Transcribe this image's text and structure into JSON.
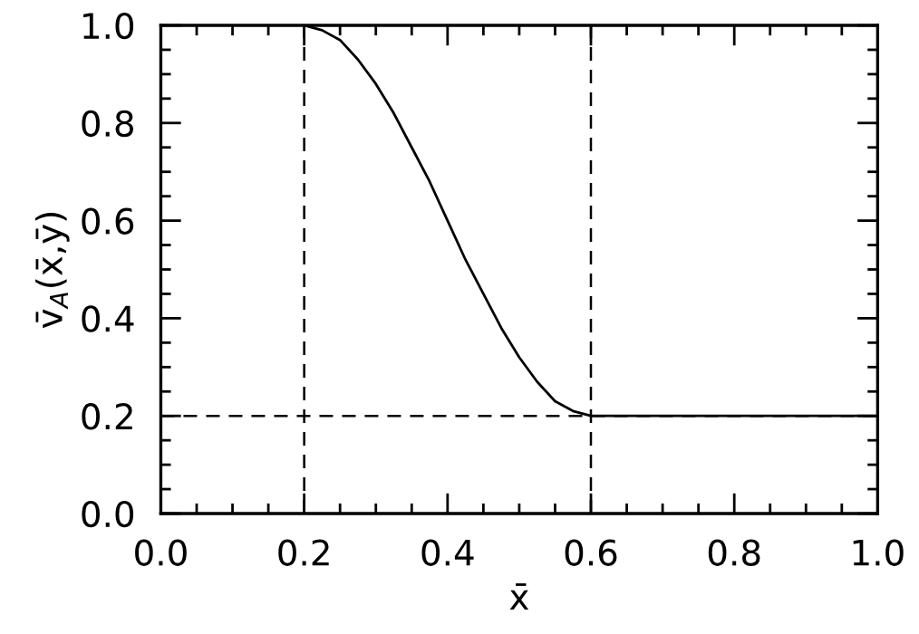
{
  "chart_data": {
    "type": "line",
    "xlabel": "x̄",
    "ylabel": "v̄$_{A}$(x̄,ȳ)",
    "x": [
      0.2,
      0.225,
      0.25,
      0.275,
      0.3,
      0.325,
      0.35,
      0.375,
      0.4,
      0.425,
      0.45,
      0.475,
      0.5,
      0.525,
      0.55,
      0.575,
      0.6,
      1.0
    ],
    "series": [
      {
        "color": "#000000",
        "values": [
          1.0,
          0.99,
          0.97,
          0.93,
          0.88,
          0.82,
          0.75,
          0.68,
          0.6,
          0.52,
          0.45,
          0.38,
          0.32,
          0.27,
          0.23,
          0.21,
          0.2,
          0.2
        ]
      }
    ],
    "xlim": [
      0,
      1
    ],
    "ylim": [
      0,
      1
    ],
    "xticks": [
      {
        "value": 0.0,
        "label": "0.0"
      },
      {
        "value": 0.05,
        "label": null
      },
      {
        "value": 0.1,
        "label": null
      },
      {
        "value": 0.15,
        "label": null
      },
      {
        "value": 0.2,
        "label": "0.2"
      },
      {
        "value": 0.25,
        "label": null
      },
      {
        "value": 0.3,
        "label": null
      },
      {
        "value": 0.35,
        "label": null
      },
      {
        "value": 0.4,
        "label": "0.4"
      },
      {
        "value": 0.45,
        "label": null
      },
      {
        "value": 0.5,
        "label": null
      },
      {
        "value": 0.55,
        "label": null
      },
      {
        "value": 0.6,
        "label": "0.6"
      },
      {
        "value": 0.65,
        "label": null
      },
      {
        "value": 0.7,
        "label": null
      },
      {
        "value": 0.75,
        "label": null
      },
      {
        "value": 0.8,
        "label": "0.8"
      },
      {
        "value": 0.85,
        "label": null
      },
      {
        "value": 0.9,
        "label": null
      },
      {
        "value": 0.95,
        "label": null
      },
      {
        "value": 1.0,
        "label": "1.0"
      }
    ],
    "yticks": [
      {
        "value": 0.0,
        "label": "0.0"
      },
      {
        "value": 0.05,
        "label": null
      },
      {
        "value": 0.1,
        "label": null
      },
      {
        "value": 0.15,
        "label": null
      },
      {
        "value": 0.2,
        "label": "0.2"
      },
      {
        "value": 0.25,
        "label": null
      },
      {
        "value": 0.3,
        "label": null
      },
      {
        "value": 0.35,
        "label": null
      },
      {
        "value": 0.4,
        "label": "0.4"
      },
      {
        "value": 0.45,
        "label": null
      },
      {
        "value": 0.5,
        "label": null
      },
      {
        "value": 0.55,
        "label": null
      },
      {
        "value": 0.6,
        "label": "0.6"
      },
      {
        "value": 0.65,
        "label": null
      },
      {
        "value": 0.7,
        "label": null
      },
      {
        "value": 0.75,
        "label": null
      },
      {
        "value": 0.8,
        "label": "0.8"
      },
      {
        "value": 0.85,
        "label": null
      },
      {
        "value": 0.9,
        "label": null
      },
      {
        "value": 0.95,
        "label": null
      },
      {
        "value": 1.0,
        "label": "1.0"
      }
    ],
    "ref_lines": [
      {
        "axis": "x",
        "value": 0.2,
        "line_style": "dashed"
      },
      {
        "axis": "x",
        "value": 0.6,
        "line_style": "dashed"
      },
      {
        "axis": "y",
        "value": 0.2,
        "line_style": "dashed"
      }
    ],
    "grid": false,
    "legend": false,
    "marker": "none",
    "line_style": "solid"
  }
}
